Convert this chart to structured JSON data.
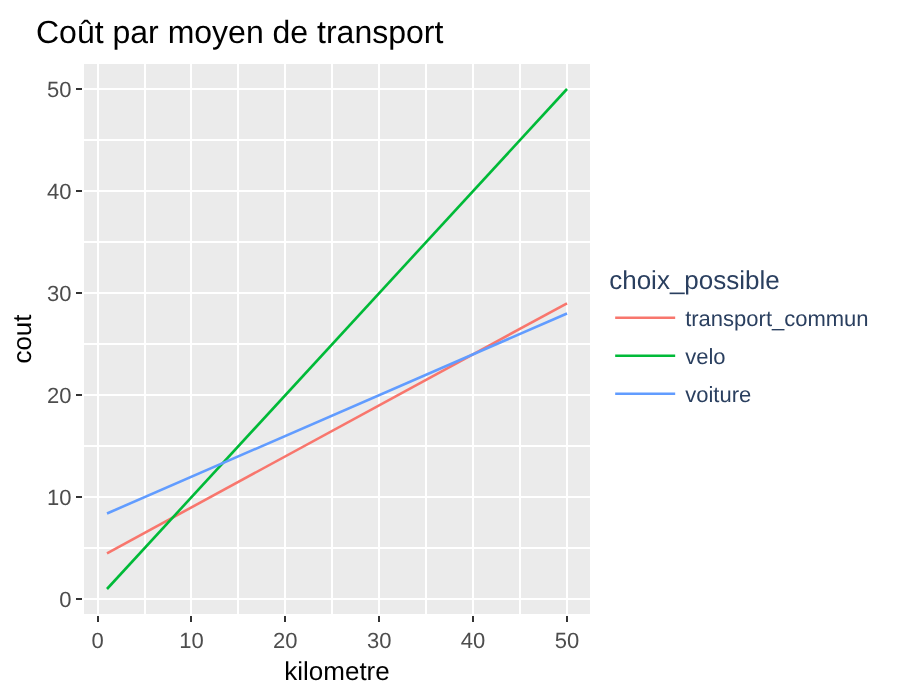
{
  "chart_data": {
    "type": "line",
    "title": "Coût par moyen de transport",
    "xlabel": "kilometre",
    "ylabel": "cout",
    "legend_title": "choix_possible",
    "x": [
      1,
      50
    ],
    "series": [
      {
        "name": "transport_commun",
        "color": "#f8766d",
        "values": [
          4.5,
          29
        ]
      },
      {
        "name": "velo",
        "color": "#00ba38",
        "values": [
          1,
          50
        ]
      },
      {
        "name": "voiture",
        "color": "#619cff",
        "values": [
          8.4,
          28
        ]
      }
    ],
    "xlim": [
      -1.45,
      52.45
    ],
    "xticks": [
      0,
      10,
      20,
      30,
      40,
      50
    ],
    "ylim": [
      -1.45,
      52.45
    ],
    "yticks": [
      0,
      10,
      20,
      30,
      40,
      50
    ],
    "grid": true,
    "legend": "right",
    "line_style": "solid",
    "marker": "none"
  }
}
